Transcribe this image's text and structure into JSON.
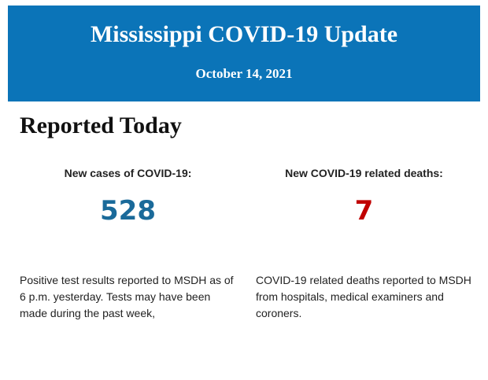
{
  "header": {
    "title": "Mississippi COVID-19 Update",
    "date": "October 14, 2021"
  },
  "section": {
    "heading": "Reported Today",
    "stats": [
      {
        "label": "New cases of COVID-19:",
        "value": 528,
        "color": "#1a6a9a",
        "note": "Positive test results reported to MSDH as of 6 p.m. yesterday. Tests may have been made during the past week,"
      },
      {
        "label": "New COVID-19 related deaths:",
        "value": 7,
        "color": "#c00000",
        "note": "COVID-19 related deaths reported to MSDH from hospitals, medical examiners and coroners."
      }
    ]
  }
}
